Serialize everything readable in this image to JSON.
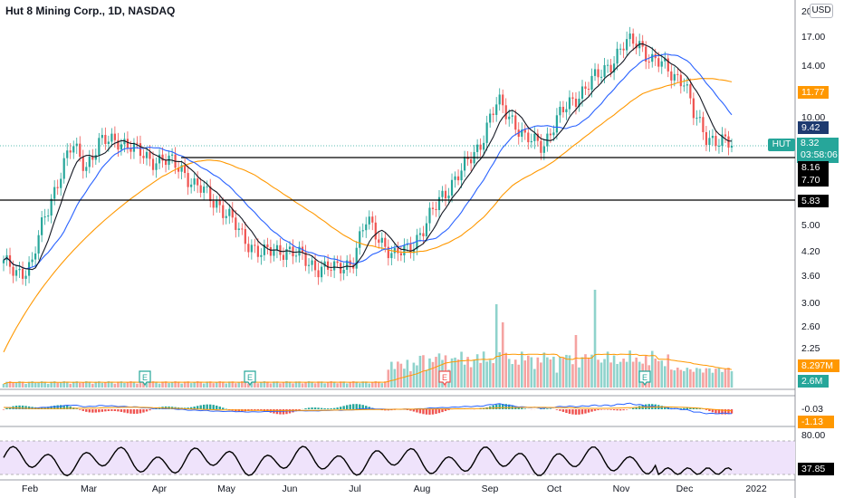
{
  "header": {
    "title": "Hut 8 Mining Corp., 1D, NASDAQ",
    "currency": "USD"
  },
  "price_axis": {
    "ticks": [
      {
        "label": "20.00",
        "value": 20.0
      },
      {
        "label": "17.00",
        "value": 17.0
      },
      {
        "label": "14.00",
        "value": 14.0
      },
      {
        "label": "10.00",
        "value": 10.0
      },
      {
        "label": "5.00",
        "value": 5.0
      },
      {
        "label": "4.20",
        "value": 4.2
      },
      {
        "label": "3.60",
        "value": 3.6
      },
      {
        "label": "3.00",
        "value": 3.0
      },
      {
        "label": "2.60",
        "value": 2.6
      },
      {
        "label": "2.25",
        "value": 2.25
      }
    ]
  },
  "price_tags": {
    "ma_orange": {
      "label": "11.77",
      "color": "#ff9800"
    },
    "ma_blue": {
      "label": "9.42",
      "color": "#1e3a70"
    },
    "last_price": {
      "label": "8.32",
      "countdown": "03:58:06",
      "symbol": "HUT",
      "color": "#26a69a"
    },
    "level_1": {
      "label": "8.16"
    },
    "level_2": {
      "label": "7.70"
    },
    "level_3": {
      "label": "5.83"
    },
    "volume_ma": {
      "label": "8.297M",
      "color": "#ff9800"
    },
    "volume": {
      "label": "2.6M",
      "color": "#26a69a"
    },
    "macd_1": {
      "label": "-0.03"
    },
    "macd_2": {
      "label": "-1.13",
      "color": "#ff9800"
    },
    "rsi_scale": {
      "label": "80.00"
    },
    "rsi_value": {
      "label": "37.85"
    }
  },
  "time_axis": {
    "labels": [
      "Feb",
      "Mar",
      "Apr",
      "May",
      "Jun",
      "Jul",
      "Aug",
      "Sep",
      "Oct",
      "Nov",
      "Dec",
      "2022"
    ]
  },
  "earnings_markers": [
    "E",
    "E",
    "E",
    "E"
  ],
  "colors": {
    "up": "#26a69a",
    "down": "#ef5350",
    "ma_short": "#131722",
    "ma_mid": "#2962ff",
    "ma_long": "#ff9800",
    "rsi_line": "#000000",
    "rsi_band": "#efe3fb"
  },
  "chart_data": {
    "type": "line",
    "title": "Hut 8 Mining Corp., 1D, NASDAQ",
    "ylabel": "USD",
    "scale": "log",
    "x": [
      "Feb",
      "Mar",
      "Apr",
      "May",
      "Jun",
      "Jul",
      "Aug",
      "Sep",
      "Oct",
      "Nov",
      "Dec"
    ],
    "series": [
      {
        "name": "HUT",
        "values": [
          3.9,
          8.6,
          7.6,
          5.0,
          4.1,
          3.8,
          4.4,
          9.2,
          9.0,
          15.5,
          11.5
        ]
      }
    ],
    "horizontal_levels": [
      8.16,
      5.83
    ],
    "last": 8.32
  }
}
